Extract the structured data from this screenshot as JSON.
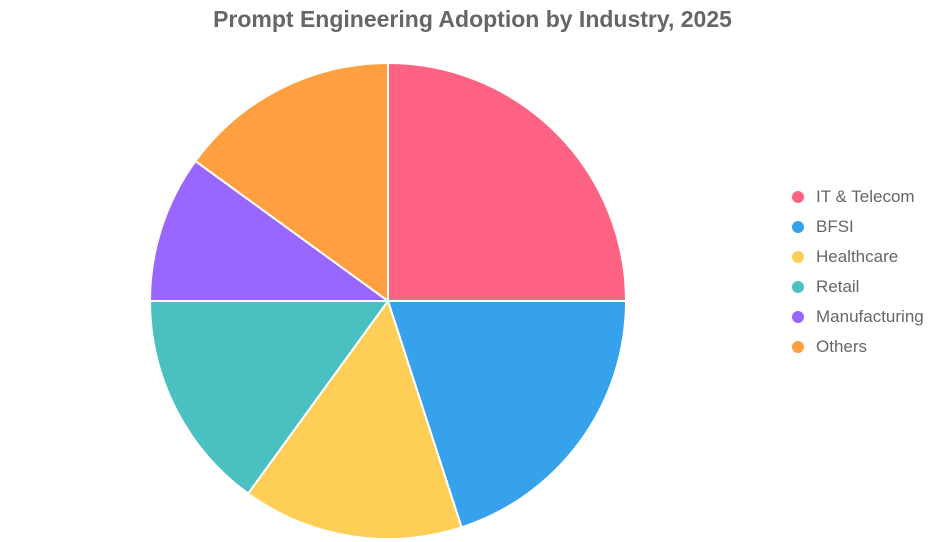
{
  "chart_data": {
    "type": "pie",
    "title": "Prompt Engineering Adoption by Industry, 2025",
    "categories": [
      "IT & Telecom",
      "BFSI",
      "Healthcare",
      "Retail",
      "Manufacturing",
      "Others"
    ],
    "values": [
      25,
      20,
      15,
      15,
      10,
      15
    ],
    "colors": [
      "#FF6384",
      "#36A2EB",
      "#FFCE56",
      "#4BC0C0",
      "#9966FF",
      "#FF9F40"
    ],
    "legend": "right",
    "start_angle": "top",
    "direction": "clockwise"
  }
}
